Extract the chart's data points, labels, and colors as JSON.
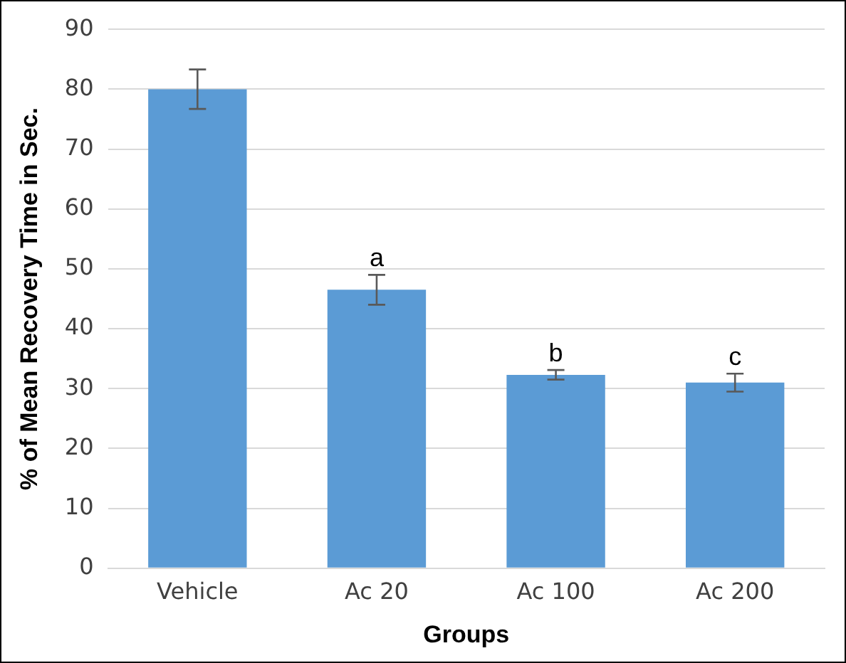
{
  "chart_data": {
    "type": "bar",
    "xlabel": "Groups",
    "ylabel": "% of Mean Recovery Time in Sec.",
    "categories": [
      "Vehicle",
      "Ac 20",
      "Ac 100",
      "Ac 200"
    ],
    "values": [
      80,
      46.5,
      32.3,
      31
    ],
    "errors": [
      3.3,
      2.5,
      0.8,
      1.5
    ],
    "color": "#5b9bd5",
    "ylim": [
      0,
      90
    ],
    "yticks": [
      0,
      10,
      20,
      30,
      40,
      50,
      60,
      70,
      80,
      90
    ],
    "grid": "y",
    "legend": false,
    "annotations": [
      {
        "text": "a",
        "x": "Ac 20",
        "y": 49
      },
      {
        "text": "b",
        "x": "Ac 100",
        "y": 33.1
      },
      {
        "text": "c",
        "x": "Ac 200",
        "y": 32.5
      }
    ]
  }
}
